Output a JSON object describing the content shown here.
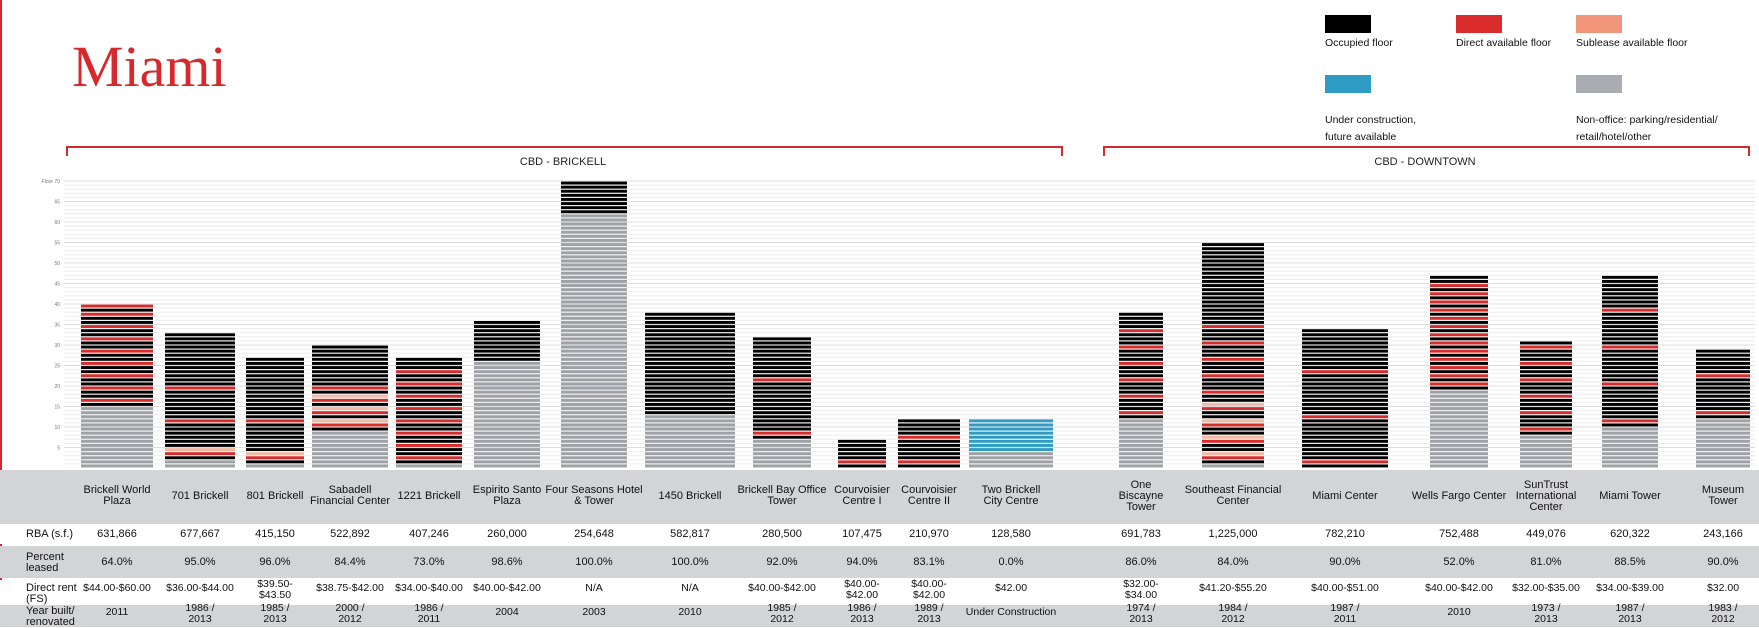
{
  "page": {
    "title": "Miami"
  },
  "legend": [
    {
      "label": "Occupied floor",
      "color": "#000000"
    },
    {
      "label": "Direct available floor",
      "color": "#d92b2b"
    },
    {
      "label": "Sublease available floor",
      "color": "#f0957a"
    },
    {
      "label": "Under construction,\nfuture available",
      "color": "#2e9cc4"
    },
    {
      "label": "Non-office: parking/residential/\nretail/hotel/other",
      "color": "#a9acb0"
    }
  ],
  "submarkets": [
    "CBD - BRICKELL",
    "CBD - DOWNTOWN"
  ],
  "table": {
    "row_labels": [
      "RBA (s.f.)",
      "Percent\nleased",
      "Direct rent\n(FS)",
      "Year built/\nrenovated"
    ]
  },
  "chart_data": {
    "type": "bar",
    "y_axis_label": "Floor 70",
    "ylim": [
      0,
      70
    ],
    "ticks": [
      5,
      10,
      15,
      20,
      25,
      30,
      35,
      40,
      45,
      50,
      55,
      60,
      65
    ],
    "buildings": [
      {
        "name": "Brickell World\nPlaza",
        "submarket": "CBD - BRICKELL",
        "total_floors": 40,
        "nonoffice_floors": 15,
        "occupied": 16,
        "direct": 9,
        "sublease": 0,
        "under_construction": 0,
        "rba": "631,866",
        "pct_leased": "64.0%",
        "rent": "$44.00-$60.00",
        "year": "2011"
      },
      {
        "name": "701 Brickell",
        "submarket": "CBD - BRICKELL",
        "total_floors": 33,
        "nonoffice_floors": 2,
        "occupied": 27,
        "direct": 3,
        "sublease": 1,
        "under_construction": 0,
        "rba": "677,667",
        "pct_leased": "95.0%",
        "rent": "$36.00-$44.00",
        "year": "1986 /\n2013"
      },
      {
        "name": "801 Brickell",
        "submarket": "CBD - BRICKELL",
        "total_floors": 27,
        "nonoffice_floors": 1,
        "occupied": 23,
        "direct": 2,
        "sublease": 1,
        "under_construction": 0,
        "rba": "415,150",
        "pct_leased": "96.0%",
        "rent": "$39.50-\n$43.50",
        "year": "1985 /\n2013"
      },
      {
        "name": "Sabadell\nFinancial Center",
        "submarket": "CBD - BRICKELL",
        "total_floors": 30,
        "nonoffice_floors": 9,
        "occupied": 14,
        "direct": 4,
        "sublease": 3,
        "under_construction": 0,
        "rba": "522,892",
        "pct_leased": "84.4%",
        "rent": "$38.75-$42.00",
        "year": "2000 /\n2012"
      },
      {
        "name": "1221 Brickell",
        "submarket": "CBD - BRICKELL",
        "total_floors": 27,
        "nonoffice_floors": 1,
        "occupied": 18,
        "direct": 8,
        "sublease": 0,
        "under_construction": 0,
        "rba": "407,246",
        "pct_leased": "73.0%",
        "rent": "$34.00-$40.00",
        "year": "1986 /\n2011"
      },
      {
        "name": "Espirito Santo\nPlaza",
        "submarket": "CBD - BRICKELL",
        "total_floors": 36,
        "nonoffice_floors": 26,
        "occupied": 10,
        "direct": 0,
        "sublease": 0,
        "under_construction": 0,
        "rba": "260,000",
        "pct_leased": "98.6%",
        "rent": "$40.00-$42.00",
        "year": "2004"
      },
      {
        "name": "Four Seasons Hotel\n& Tower",
        "submarket": "CBD - BRICKELL",
        "total_floors": 70,
        "nonoffice_floors": 62,
        "occupied": 8,
        "direct": 0,
        "sublease": 0,
        "under_construction": 0,
        "rba": "254,648",
        "pct_leased": "100.0%",
        "rent": "N/A",
        "year": "2003"
      },
      {
        "name": "1450 Brickell",
        "submarket": "CBD - BRICKELL",
        "total_floors": 38,
        "nonoffice_floors": 13,
        "occupied": 25,
        "direct": 0,
        "sublease": 0,
        "under_construction": 0,
        "rba": "582,817",
        "pct_leased": "100.0%",
        "rent": "N/A",
        "year": "2010"
      },
      {
        "name": "Brickell Bay Office\nTower",
        "submarket": "CBD - BRICKELL",
        "total_floors": 32,
        "nonoffice_floors": 7,
        "occupied": 23,
        "direct": 2,
        "sublease": 0,
        "under_construction": 0,
        "rba": "280,500",
        "pct_leased": "92.0%",
        "rent": "$40.00-$42.00",
        "year": "1985 /\n2012"
      },
      {
        "name": "Courvoisier\nCentre I",
        "submarket": "CBD - BRICKELL",
        "total_floors": 7,
        "nonoffice_floors": 0,
        "occupied": 6,
        "direct": 1,
        "sublease": 0,
        "under_construction": 0,
        "rba": "107,475",
        "pct_leased": "94.0%",
        "rent": "$40.00-\n$42.00",
        "year": "1986 /\n2013"
      },
      {
        "name": "Courvoisier\nCentre II",
        "submarket": "CBD - BRICKELL",
        "total_floors": 12,
        "nonoffice_floors": 0,
        "occupied": 10,
        "direct": 2,
        "sublease": 0,
        "under_construction": 0,
        "rba": "210,970",
        "pct_leased": "83.1%",
        "rent": "$40.00-\n$42.00",
        "year": "1989 /\n2013"
      },
      {
        "name": "Two Brickell\nCity Centre",
        "submarket": "CBD - BRICKELL",
        "total_floors": 12,
        "nonoffice_floors": 4,
        "occupied": 0,
        "direct": 0,
        "sublease": 0,
        "under_construction": 8,
        "rba": "128,580",
        "pct_leased": "0.0%",
        "rent": "$42.00",
        "year": "Under Construction"
      },
      {
        "name": "One\nBiscayne\nTower",
        "submarket": "CBD - DOWNTOWN",
        "total_floors": 38,
        "nonoffice_floors": 12,
        "occupied": 20,
        "direct": 6,
        "sublease": 0,
        "under_construction": 0,
        "rba": "691,783",
        "pct_leased": "86.0%",
        "rent": "$32.00-\n$34.00",
        "year": "1974 /\n2013"
      },
      {
        "name": "Southeast Financial\nCenter",
        "submarket": "CBD - DOWNTOWN",
        "total_floors": 55,
        "nonoffice_floors": 1,
        "occupied": 41,
        "direct": 9,
        "sublease": 4,
        "under_construction": 0,
        "rba": "1,225,000",
        "pct_leased": "84.0%",
        "rent": "$41.20-$55.20",
        "year": "1984 /\n2012"
      },
      {
        "name": "Miami Center",
        "submarket": "CBD - DOWNTOWN",
        "total_floors": 34,
        "nonoffice_floors": 0,
        "occupied": 31,
        "direct": 3,
        "sublease": 0,
        "under_construction": 0,
        "rba": "782,210",
        "pct_leased": "90.0%",
        "rent": "$40.00-$51.00",
        "year": "1987 /\n2011"
      },
      {
        "name": "Wells Fargo Center",
        "submarket": "CBD - DOWNTOWN",
        "total_floors": 47,
        "nonoffice_floors": 19,
        "occupied": 15,
        "direct": 13,
        "sublease": 0,
        "under_construction": 0,
        "rba": "752,488",
        "pct_leased": "52.0%",
        "rent": "$40.00-$42.00",
        "year": "2010"
      },
      {
        "name": "SunTrust\nInternational\nCenter",
        "submarket": "CBD - DOWNTOWN",
        "total_floors": 31,
        "nonoffice_floors": 8,
        "occupied": 17,
        "direct": 6,
        "sublease": 0,
        "under_construction": 0,
        "rba": "449,076",
        "pct_leased": "81.0%",
        "rent": "$32.00-$35.00",
        "year": "1973 /\n2013"
      },
      {
        "name": "Miami Tower",
        "submarket": "CBD - DOWNTOWN",
        "total_floors": 47,
        "nonoffice_floors": 10,
        "occupied": 33,
        "direct": 4,
        "sublease": 0,
        "under_construction": 0,
        "rba": "620,322",
        "pct_leased": "88.5%",
        "rent": "$34.00-$39.00",
        "year": "1987 /\n2013"
      },
      {
        "name": "Museum\nTower",
        "submarket": "CBD - DOWNTOWN",
        "total_floors": 29,
        "nonoffice_floors": 12,
        "occupied": 15,
        "direct": 2,
        "sublease": 0,
        "under_construction": 0,
        "rba": "243,166",
        "pct_leased": "90.0%",
        "rent": "$32.00",
        "year": "1983 /\n2012"
      }
    ]
  }
}
